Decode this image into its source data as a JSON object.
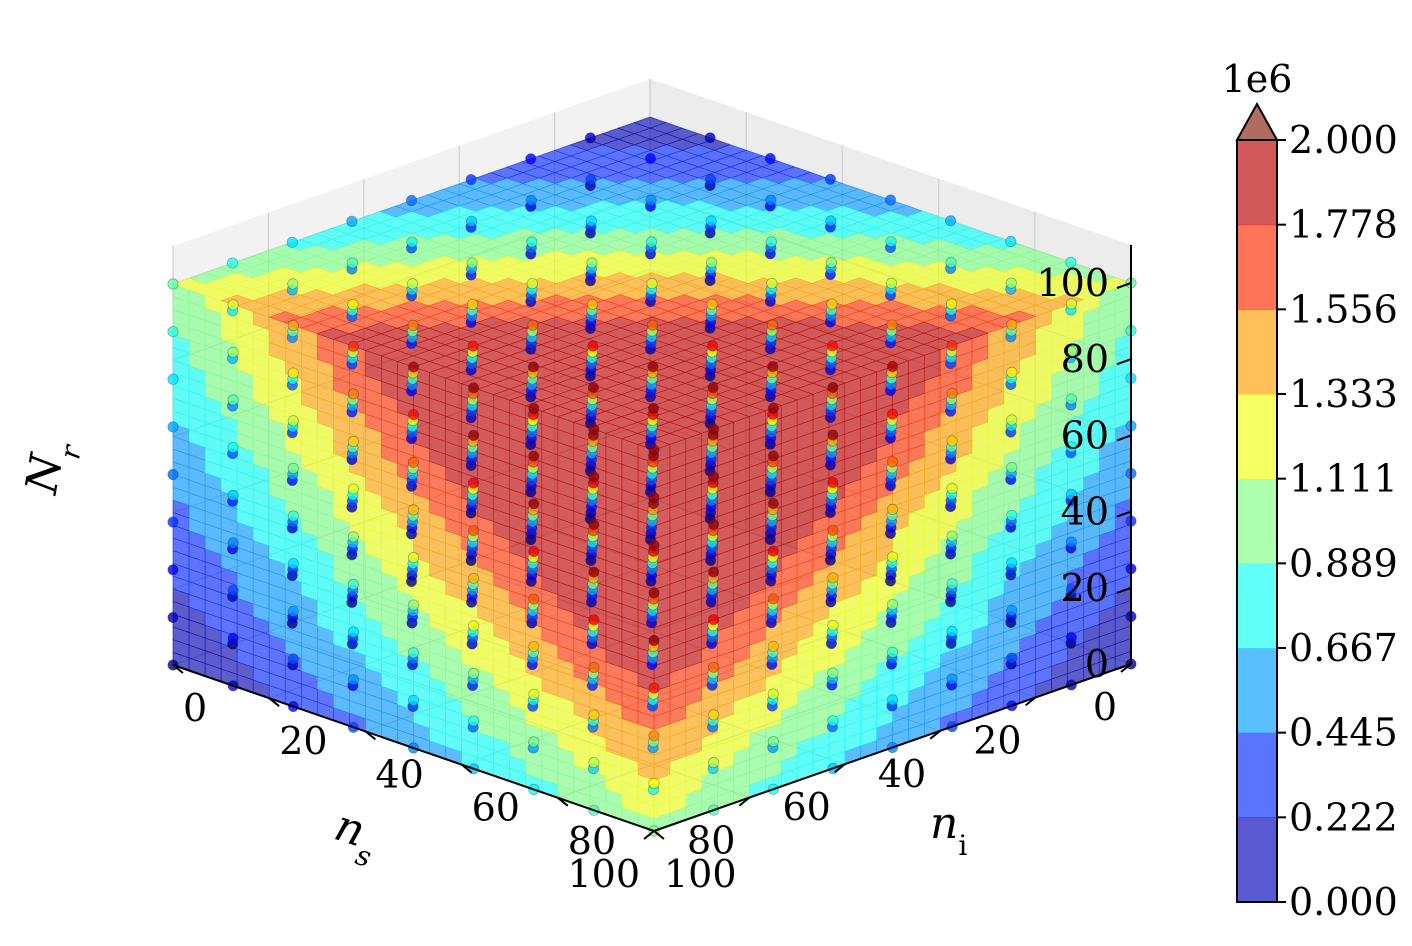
{
  "chart_data": {
    "type": "scatter",
    "subtype": "3d-scatter-with-contour-slices",
    "title": "",
    "axes": {
      "x": {
        "label": "n_s",
        "ticks": [
          "0",
          "20",
          "40",
          "60",
          "80",
          "100"
        ],
        "range": [
          0,
          100
        ]
      },
      "y": {
        "label": "n_i",
        "ticks": [
          "0",
          "20",
          "40",
          "60",
          "80",
          "100"
        ],
        "range": [
          0,
          100
        ]
      },
      "z": {
        "label": "N_r",
        "ticks": [
          "0",
          "20",
          "40",
          "60",
          "80",
          "100"
        ],
        "range": [
          0,
          110
        ]
      }
    },
    "grid": true,
    "colormap": "jet",
    "colorbar": {
      "offset_label": "1e6",
      "ticks": [
        "0.000",
        "0.222",
        "0.445",
        "0.667",
        "0.889",
        "1.111",
        "1.333",
        "1.556",
        "1.778",
        "2.000"
      ],
      "range": [
        0,
        2000000
      ],
      "extend": "max",
      "levels": 9
    },
    "point_grid": {
      "values": [
        0,
        12.5,
        25,
        37.5,
        50,
        62.5,
        75,
        87.5,
        100
      ],
      "note": "points placed on a 9x9x9 lattice over n_s, n_i, N_r"
    },
    "slices": [
      {
        "plane": "N_r = 100",
        "range": "n_s 0-50, n_i 0-50"
      },
      {
        "plane": "n_i = 50",
        "range": "n_s 0-50, N_r 0-80"
      },
      {
        "plane": "n_s = 50",
        "range": "n_i 0-50, N_r 0-80"
      }
    ]
  }
}
